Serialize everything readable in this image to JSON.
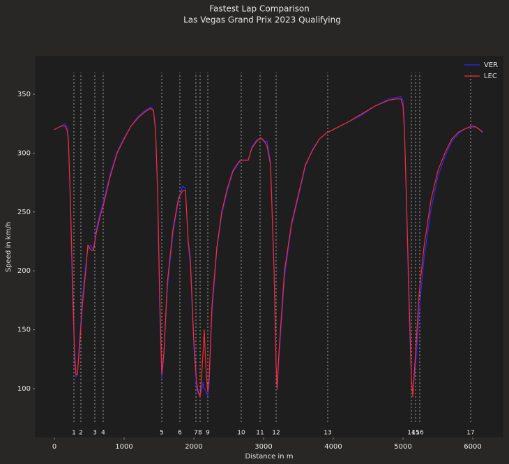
{
  "chart_data": {
    "type": "line",
    "title": "Fastest Lap Comparison",
    "subtitle": "Las Vegas Grand Prix 2023 Qualifying",
    "xlabel": "Distance in m",
    "ylabel": "Speed in km/h",
    "xlim": [
      -280,
      6440
    ],
    "ylim": [
      58.5,
      382.6
    ],
    "xticks": [
      0,
      1000,
      2000,
      3000,
      4000,
      5000,
      6000
    ],
    "yticks": [
      100,
      150,
      200,
      250,
      300,
      350
    ],
    "grid": false,
    "legend": "upper right",
    "x": [
      0,
      100,
      150,
      180,
      200,
      230,
      260,
      290,
      310,
      330,
      360,
      400,
      450,
      480,
      520,
      560,
      600,
      650,
      700,
      800,
      900,
      1000,
      1100,
      1200,
      1300,
      1380,
      1420,
      1450,
      1480,
      1510,
      1540,
      1570,
      1620,
      1700,
      1780,
      1840,
      1880,
      1920,
      1950,
      2000,
      2040,
      2060,
      2090,
      2110,
      2130,
      2150,
      2170,
      2200,
      2220,
      2260,
      2330,
      2400,
      2480,
      2560,
      2650,
      2680,
      2780,
      2830,
      2900,
      2960,
      3000,
      3050,
      3100,
      3150,
      3180,
      3195,
      3220,
      3300,
      3400,
      3500,
      3600,
      3700,
      3800,
      3900,
      4000,
      4200,
      4400,
      4600,
      4800,
      4900,
      4970,
      5000,
      5020,
      5050,
      5090,
      5120,
      5140,
      5180,
      5230,
      5300,
      5400,
      5500,
      5600,
      5700,
      5800,
      5900,
      6000,
      6050,
      6100,
      6140
    ],
    "series": [
      {
        "name": "VER",
        "color": "#2a2aff",
        "values": [
          320,
          323,
          325,
          322,
          314,
          255,
          180,
          125,
          110,
          113,
          140,
          175,
          205,
          218,
          222,
          218,
          235,
          248,
          258,
          282,
          301,
          313,
          323,
          331,
          336,
          339,
          337,
          322,
          265,
          170,
          109,
          128,
          185,
          232,
          260,
          272,
          270,
          222,
          205,
          135,
          100,
          96,
          95,
          98,
          105,
          100,
          98,
          94,
          105,
          165,
          218,
          248,
          268,
          284,
          292,
          294,
          294,
          305,
          311,
          313,
          310,
          310,
          292,
          205,
          118,
          99,
          125,
          195,
          238,
          263,
          289,
          303,
          312,
          317,
          320,
          326,
          332,
          340,
          346,
          347,
          348,
          345,
          325,
          255,
          160,
          108,
          96,
          120,
          165,
          210,
          252,
          280,
          297,
          310,
          317,
          321,
          322,
          322,
          320,
          317
        ]
      },
      {
        "name": "LEC",
        "color": "#ff2a2a",
        "values": [
          320,
          323,
          323,
          320,
          312,
          260,
          190,
          130,
          112,
          112,
          135,
          170,
          200,
          222,
          218,
          217,
          232,
          245,
          255,
          280,
          300,
          312,
          323,
          330,
          335,
          338,
          336,
          320,
          270,
          180,
          112,
          130,
          190,
          235,
          262,
          268,
          268,
          225,
          210,
          140,
          105,
          98,
          93,
          110,
          128,
          150,
          120,
          97,
          110,
          170,
          220,
          250,
          270,
          285,
          293,
          294,
          294,
          304,
          310,
          313,
          311,
          306,
          290,
          200,
          120,
          100,
          130,
          200,
          240,
          265,
          290,
          302,
          312,
          317,
          320,
          326,
          333,
          340,
          345,
          346,
          346,
          340,
          320,
          260,
          170,
          110,
          93,
          130,
          180,
          220,
          260,
          285,
          300,
          312,
          318,
          321,
          323,
          322,
          320,
          318
        ]
      }
    ],
    "corners": {
      "numbers": [
        1,
        2,
        3,
        4,
        5,
        6,
        7,
        8,
        9,
        10,
        11,
        12,
        13,
        14,
        15,
        16,
        17
      ],
      "distances": [
        280,
        380,
        580,
        700,
        1540,
        1800,
        2030,
        2090,
        2200,
        2680,
        2950,
        3180,
        3920,
        5120,
        5180,
        5240,
        5970
      ],
      "line_range": [
        71.6,
        368.4
      ]
    }
  }
}
